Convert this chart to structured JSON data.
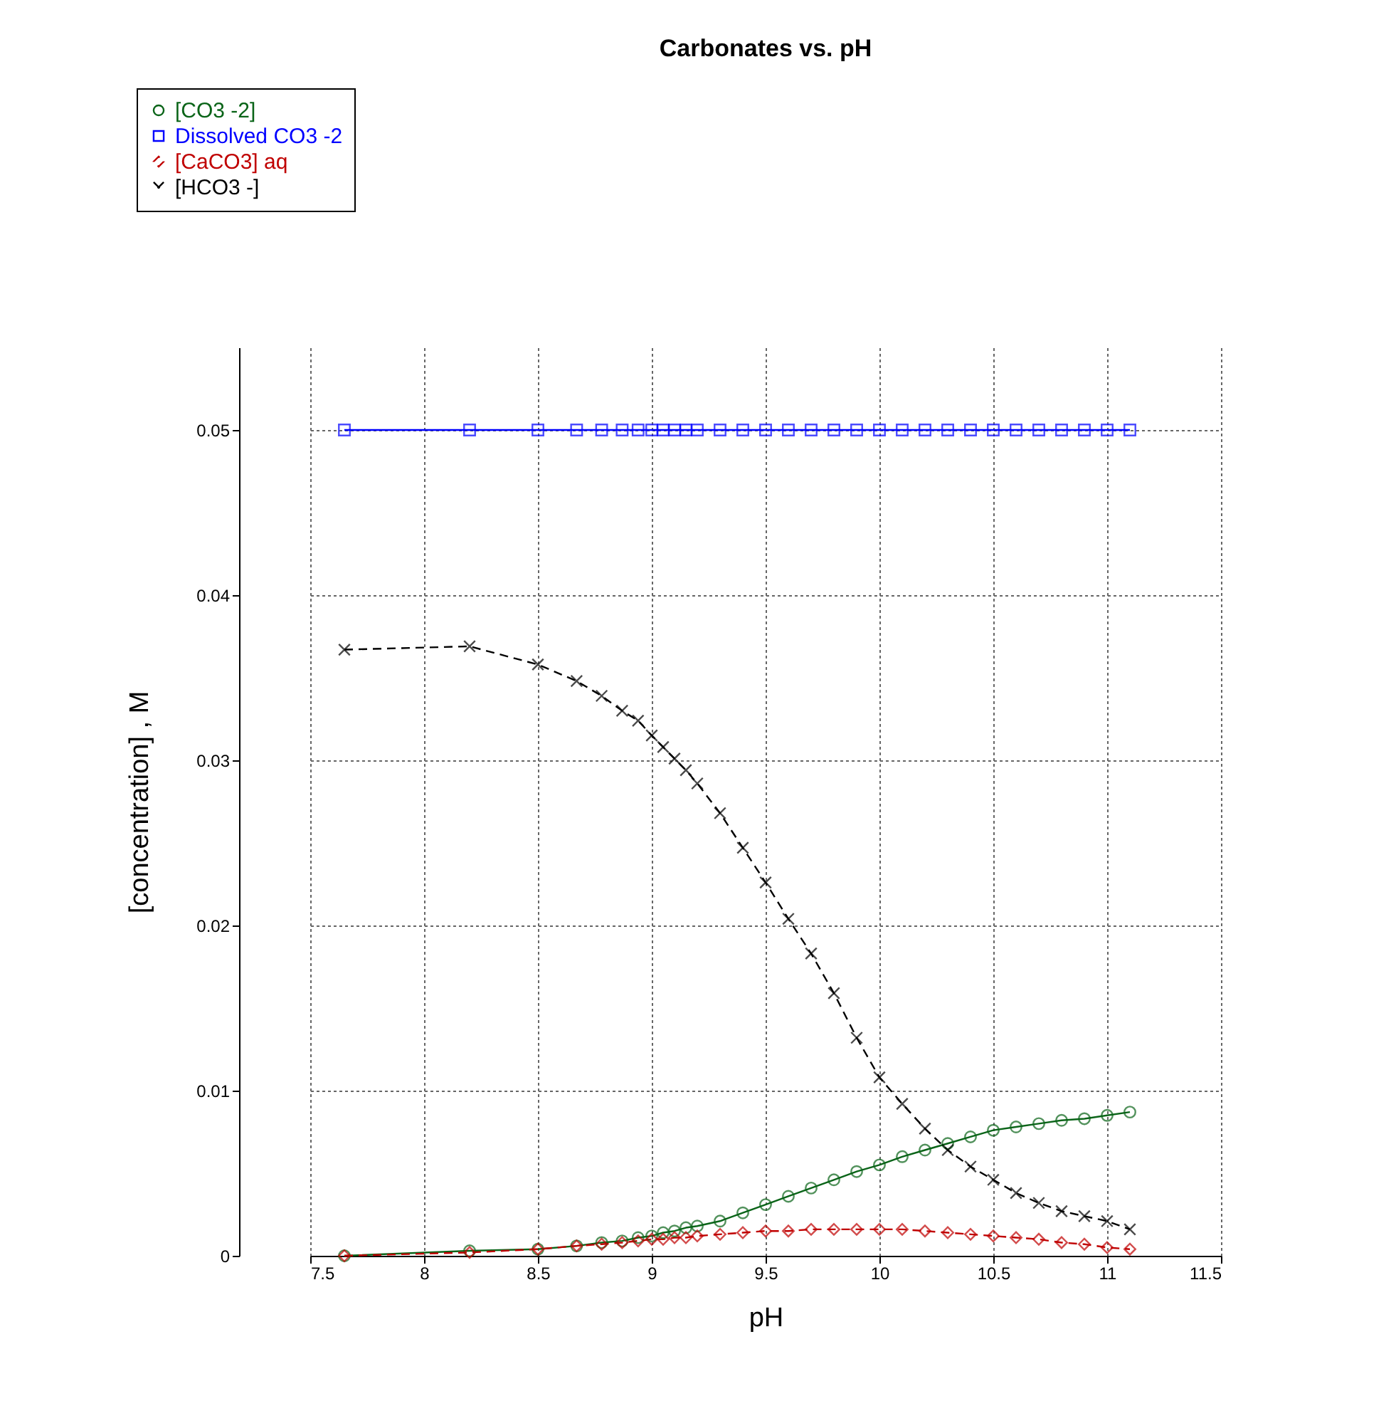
{
  "chart_data": {
    "type": "line",
    "title": "Carbonates vs. pH",
    "xlabel": "pH",
    "ylabel": "[concentration] , M",
    "x": [
      7.65,
      8.2,
      8.5,
      8.67,
      8.78,
      8.87,
      8.94,
      9.0,
      9.05,
      9.1,
      9.15,
      9.2,
      9.3,
      9.4,
      9.5,
      9.6,
      9.7,
      9.8,
      9.9,
      10.0,
      10.1,
      10.2,
      10.3,
      10.4,
      10.5,
      10.6,
      10.7,
      10.8,
      10.9,
      11.0,
      11.1
    ],
    "series": [
      {
        "name": "[CO3 -2]",
        "color": "#0a6418",
        "marker": "circle",
        "line_style": "solid",
        "values": [
          0,
          0.0003,
          0.0004,
          0.0006,
          0.0008,
          0.0009,
          0.0011,
          0.0012,
          0.0014,
          0.0015,
          0.0017,
          0.0018,
          0.0021,
          0.0026,
          0.0031,
          0.0036,
          0.0041,
          0.0046,
          0.0051,
          0.0055,
          0.006,
          0.0064,
          0.0068,
          0.0072,
          0.0076,
          0.0078,
          0.008,
          0.0082,
          0.0083,
          0.0085,
          0.0087
        ]
      },
      {
        "name": "Dissolved CO3 -2",
        "color": "#0000ff",
        "marker": "square",
        "line_style": "solid",
        "values": [
          0.05,
          0.05,
          0.05,
          0.05,
          0.05,
          0.05,
          0.05,
          0.05,
          0.05,
          0.05,
          0.05,
          0.05,
          0.05,
          0.05,
          0.05,
          0.05,
          0.05,
          0.05,
          0.05,
          0.05,
          0.05,
          0.05,
          0.05,
          0.05,
          0.05,
          0.05,
          0.05,
          0.05,
          0.05,
          0.05,
          0.05
        ]
      },
      {
        "name": "[CaCO3] aq",
        "color": "#c00000",
        "marker": "diamond",
        "line_style": "dashed",
        "values": [
          0,
          0.0002,
          0.0004,
          0.0006,
          0.0007,
          0.0008,
          0.0009,
          0.001,
          0.001,
          0.0011,
          0.0011,
          0.0012,
          0.0013,
          0.0014,
          0.0015,
          0.0015,
          0.0016,
          0.0016,
          0.0016,
          0.0016,
          0.0016,
          0.0015,
          0.0014,
          0.0013,
          0.0012,
          0.0011,
          0.001,
          0.0008,
          0.0007,
          0.0005,
          0.0004
        ]
      },
      {
        "name": "[HCO3 -]",
        "color": "#000000",
        "marker": "cross",
        "line_style": "dashed",
        "values": [
          0.0367,
          0.0369,
          0.0358,
          0.0348,
          0.0339,
          0.033,
          0.0324,
          0.0315,
          0.0308,
          0.0301,
          0.0294,
          0.0286,
          0.0268,
          0.0247,
          0.0226,
          0.0204,
          0.0183,
          0.0159,
          0.0132,
          0.0108,
          0.0092,
          0.0077,
          0.0064,
          0.0054,
          0.0046,
          0.0038,
          0.0032,
          0.0027,
          0.0024,
          0.0021,
          0.0016
        ]
      }
    ],
    "xlim": [
      7.5,
      11.5
    ],
    "xticks": [
      7.5,
      8,
      8.5,
      9,
      9.5,
      10,
      10.5,
      11,
      11.5
    ],
    "ylim": [
      0,
      0.055
    ],
    "yticks": [
      0,
      0.01,
      0.02,
      0.03,
      0.04,
      0.05
    ],
    "grid": true,
    "legend": "top left"
  }
}
